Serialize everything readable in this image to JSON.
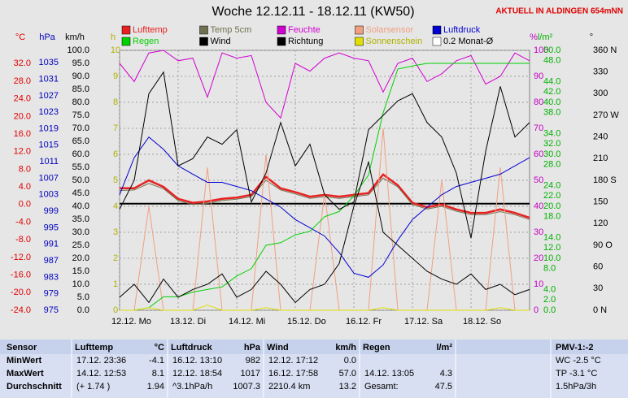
{
  "chart_data": {
    "type": "line",
    "title": "Woche 12.12.11 - 18.12.11 (KW50)",
    "note": "AKTUELL IN ALDINGEN 654mNN",
    "xlim": [
      0,
      7
    ],
    "xticks": [
      {
        "value": 0,
        "label": "12.12. Mo"
      },
      {
        "value": 1,
        "label": "13.12. Di"
      },
      {
        "value": 2,
        "label": "14.12. Mi"
      },
      {
        "value": 3,
        "label": "15.12. Do"
      },
      {
        "value": 4,
        "label": "16.12. Fr"
      },
      {
        "value": 5,
        "label": "17.12. Sa"
      },
      {
        "value": 6,
        "label": "18.12. So"
      }
    ],
    "x": [
      0,
      0.25,
      0.5,
      0.75,
      1,
      1.25,
      1.5,
      1.75,
      2,
      2.25,
      2.5,
      2.75,
      3,
      3.25,
      3.5,
      3.75,
      4,
      4.25,
      4.5,
      4.75,
      5,
      5.25,
      5.5,
      5.75,
      6,
      6.25,
      6.5,
      6.75,
      7
    ],
    "axes": [
      {
        "id": "temp",
        "label": "°C",
        "color": "#e00000",
        "lim": [
          -24,
          35
        ],
        "ticks": [
          {
            "value": 32,
            "label": "32.0"
          },
          {
            "value": 28,
            "label": "28.0"
          },
          {
            "value": 24,
            "label": "24.0"
          },
          {
            "value": 20,
            "label": "20.0"
          },
          {
            "value": 16,
            "label": "16.0"
          },
          {
            "value": 12,
            "label": "12.0"
          },
          {
            "value": 8,
            "label": "8.0"
          },
          {
            "value": 4,
            "label": "4.0"
          },
          {
            "value": 0,
            "label": "0.0"
          },
          {
            "value": -4,
            "label": "-4.0"
          },
          {
            "value": -8,
            "label": "-8.0"
          },
          {
            "value": -12,
            "label": "-12.0"
          },
          {
            "value": -16,
            "label": "-16.0"
          },
          {
            "value": -20,
            "label": "-20.0"
          },
          {
            "value": -24,
            "label": "-24.0"
          }
        ]
      },
      {
        "id": "press",
        "label": "hPa",
        "color": "#0000c0",
        "lim": [
          975,
          1038
        ],
        "ticks": [
          1035,
          1031,
          1027,
          1023,
          1019,
          1015,
          1011,
          1007,
          1003,
          999,
          995,
          991,
          987,
          983,
          979,
          975
        ]
      },
      {
        "id": "wind",
        "label": "km/h",
        "color": "#000000",
        "lim": [
          0,
          100
        ],
        "ticks": [
          {
            "value": 100,
            "label": "100.0"
          },
          {
            "value": 95,
            "label": "95.0"
          },
          {
            "value": 90,
            "label": "90.0"
          },
          {
            "value": 85,
            "label": "85.0"
          },
          {
            "value": 80,
            "label": "80.0"
          },
          {
            "value": 75,
            "label": "75.0"
          },
          {
            "value": 70,
            "label": "70.0"
          },
          {
            "value": 65,
            "label": "65.0"
          },
          {
            "value": 60,
            "label": "60.0"
          },
          {
            "value": 55,
            "label": "55.0"
          },
          {
            "value": 50,
            "label": "50.0"
          },
          {
            "value": 45,
            "label": "45.0"
          },
          {
            "value": 40,
            "label": "40.0"
          },
          {
            "value": 35,
            "label": "35.0"
          },
          {
            "value": 30,
            "label": "30.0"
          },
          {
            "value": 25,
            "label": "25.0"
          },
          {
            "value": 20,
            "label": "20.0"
          },
          {
            "value": 15,
            "label": "15.0"
          },
          {
            "value": 10,
            "label": "10.0"
          },
          {
            "value": 5,
            "label": "5.0"
          },
          {
            "value": 0,
            "label": "0.0"
          }
        ]
      },
      {
        "id": "sun",
        "label": "h",
        "color": "#b0b000",
        "lim": [
          0,
          10
        ],
        "grid": true,
        "ticks": [
          10,
          9,
          8,
          7,
          6,
          5,
          4,
          3,
          2,
          1,
          0
        ]
      },
      {
        "id": "hum",
        "label": "%",
        "color": "#c000c0",
        "lim": [
          0,
          100
        ],
        "ticks": [
          100,
          90,
          80,
          70,
          60,
          50,
          40,
          30,
          20,
          10,
          0
        ]
      },
      {
        "id": "rain",
        "label": "l/m²",
        "color": "#00b000",
        "lim": [
          0,
          50
        ],
        "ticks": [
          {
            "value": 50,
            "label": "50.0"
          },
          {
            "value": 48,
            "label": "48.0"
          },
          {
            "value": 44,
            "label": "44.0"
          },
          {
            "value": 42,
            "label": "42.0"
          },
          {
            "value": 40,
            "label": "40.0"
          },
          {
            "value": 38,
            "label": "38.0"
          },
          {
            "value": 34,
            "label": "34.0"
          },
          {
            "value": 32,
            "label": "32.0"
          },
          {
            "value": 30,
            "label": "30.0"
          },
          {
            "value": 28,
            "label": "28.0"
          },
          {
            "value": 24,
            "label": "24.0"
          },
          {
            "value": 22,
            "label": "22.0"
          },
          {
            "value": 20,
            "label": "20.0"
          },
          {
            "value": 18,
            "label": "18.0"
          },
          {
            "value": 14,
            "label": "14.0"
          },
          {
            "value": 12,
            "label": "12.0"
          },
          {
            "value": 10,
            "label": "10.0"
          },
          {
            "value": 8,
            "label": "8.0"
          },
          {
            "value": 4,
            "label": "4.0"
          },
          {
            "value": 2,
            "label": "2.0"
          },
          {
            "value": 0,
            "label": "0.0"
          }
        ]
      },
      {
        "id": "dir",
        "label": "°",
        "color": "#000000",
        "lim": [
          0,
          360
        ],
        "ticks": [
          {
            "value": 360,
            "label": "360 N"
          },
          330,
          300,
          {
            "value": 270,
            "label": "270 W"
          },
          240,
          210,
          {
            "value": 180,
            "label": "180 S"
          },
          150,
          120,
          {
            "value": 90,
            "label": "90 O"
          },
          60,
          30,
          {
            "value": 0,
            "label": "0 N"
          }
        ]
      }
    ],
    "series": [
      {
        "name": "Lufttemp",
        "color": "#e82020",
        "axis": "temp",
        "values": [
          3.7,
          3.7,
          5.5,
          4.0,
          1.3,
          0.4,
          0.7,
          1.3,
          1.6,
          2.2,
          6.3,
          3.7,
          2.8,
          1.8,
          2.2,
          1.8,
          2.2,
          2.6,
          6.8,
          4.4,
          0.4,
          -0.6,
          0.0,
          -1.1,
          -1.9,
          -1.9,
          -1.1,
          -1.9,
          -3.0
        ]
      },
      {
        "name": "Temp 5cm",
        "color": "#707050",
        "axis": "temp",
        "values": [
          3.2,
          3.3,
          4.8,
          3.6,
          0.9,
          0.0,
          0.3,
          0.9,
          1.2,
          1.8,
          5.5,
          3.3,
          2.4,
          1.4,
          1.8,
          1.4,
          1.8,
          2.2,
          6.0,
          4.0,
          0.0,
          -1.0,
          -0.4,
          -1.5,
          -2.3,
          -2.3,
          -1.6,
          -2.3,
          -3.4
        ]
      },
      {
        "name": "Feuchte",
        "color": "#d000d0",
        "axis": "hum",
        "values": [
          95,
          88,
          99,
          100,
          96,
          97,
          82,
          99,
          97,
          98,
          80,
          74,
          95,
          92,
          97,
          99,
          97,
          96,
          84,
          95,
          97,
          88,
          91,
          96,
          98,
          87,
          90,
          99,
          96
        ]
      },
      {
        "name": "Solarsensor",
        "color": "#f0a080",
        "axis": "hum",
        "values": [
          0,
          0,
          40,
          0,
          0,
          0,
          55,
          0,
          0,
          0,
          60,
          0,
          0,
          0,
          45,
          0,
          0,
          0,
          70,
          0,
          0,
          0,
          50,
          0,
          0,
          0,
          55,
          0,
          0
        ]
      },
      {
        "name": "Luftdruck",
        "color": "#0000d0",
        "axis": "press",
        "values": [
          1003,
          1012,
          1017,
          1014,
          1010,
          1008,
          1006,
          1006,
          1005,
          1004,
          1002,
          1000,
          997,
          995,
          993,
          989,
          984,
          983,
          986,
          992,
          997,
          1000,
          1003,
          1005,
          1006,
          1007,
          1008,
          1010,
          1012
        ]
      },
      {
        "name": "Regen",
        "color": "#00d000",
        "axis": "rain",
        "values": [
          0,
          0,
          0.5,
          2.6,
          2.6,
          3.5,
          4.0,
          4.5,
          6.6,
          8,
          12.5,
          13,
          14.5,
          15.2,
          18,
          19,
          22,
          26,
          38,
          46.4,
          47,
          47.5,
          47.5,
          47.5,
          47.5,
          47.5,
          47.5,
          47.5,
          47.5
        ]
      },
      {
        "name": "Wind",
        "color": "#000000",
        "axis": "wind",
        "values": [
          5,
          10,
          3,
          12,
          5,
          8,
          10,
          14,
          5,
          8,
          15,
          10,
          3,
          8,
          10,
          18,
          40,
          57,
          30,
          25,
          20,
          15,
          12,
          10,
          14,
          8,
          10,
          6,
          8
        ]
      },
      {
        "name": "Richtung",
        "color": "#000000",
        "axis": "dir",
        "values": [
          140,
          180,
          300,
          330,
          200,
          210,
          240,
          230,
          250,
          150,
          190,
          260,
          200,
          230,
          160,
          140,
          150,
          250,
          270,
          290,
          300,
          260,
          240,
          190,
          100,
          220,
          310,
          240,
          260
        ]
      },
      {
        "name": "Sonnenschein",
        "color": "#e0e000",
        "axis": "sun",
        "values": [
          0,
          0,
          0.1,
          0,
          0,
          0,
          0.2,
          0,
          0,
          0,
          0.1,
          0,
          0,
          0,
          0,
          0,
          0,
          0,
          0.1,
          0,
          0,
          0,
          0,
          0,
          0,
          0,
          0.1,
          0,
          0
        ]
      }
    ],
    "reference_line": {
      "name": "0.2 Monat-Ø",
      "value": 0.2,
      "axis": "temp",
      "color": "#000000"
    }
  },
  "table": {
    "corner": "Sensor",
    "row_labels": [
      "MinWert",
      "MaxWert",
      "Durchschnitt"
    ],
    "columns": [
      {
        "name": "Lufttemp",
        "unit": "°C",
        "cells": [
          [
            "17.12.  23:36",
            "-4.1"
          ],
          [
            "14.12.  12:53",
            "8.1"
          ],
          [
            "(+ 1.74 )",
            "1.94"
          ]
        ]
      },
      {
        "name": "Luftdruck",
        "unit": "hPa",
        "cells": [
          [
            "16.12.  13:10",
            "982"
          ],
          [
            "12.12.  18:54",
            "1017"
          ],
          [
            "^3.1hPa/h",
            "1007.3"
          ]
        ]
      },
      {
        "name": "Wind",
        "unit": "km/h",
        "cells": [
          [
            "12.12.  17:12",
            "0.0"
          ],
          [
            "16.12.  17:58",
            "57.0"
          ],
          [
            "2210.4 km",
            "13.2"
          ]
        ]
      },
      {
        "name": "Regen",
        "unit": "l/m²",
        "cells": [
          null,
          [
            "14.12.  13:05",
            "4.3"
          ],
          [
            "Gesamt:",
            "47.5"
          ]
        ]
      }
    ],
    "pmv": {
      "title": "PMV-1:-2",
      "lines": [
        "WC -2.5 °C",
        "TP -3.1 °C",
        "1.5hPa/3h"
      ]
    }
  }
}
